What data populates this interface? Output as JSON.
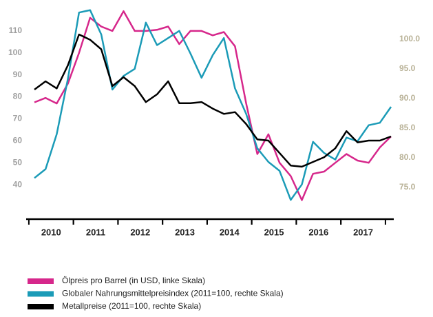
{
  "chart_data": {
    "type": "line",
    "categories": [
      null,
      null,
      "2010",
      null,
      null,
      null,
      "2011",
      null,
      null,
      null,
      "2012",
      null,
      null,
      null,
      "2013",
      null,
      null,
      null,
      "2014",
      null,
      null,
      null,
      "2015",
      null,
      null,
      null,
      "2016",
      null,
      null,
      null,
      "2017",
      null,
      null
    ],
    "series": [
      {
        "name": "Ölpreis pro Barrel (in USD, linke Skala)",
        "color": "#d6278b",
        "axis": "y",
        "values": [
          77.5,
          79.5,
          77,
          86,
          100,
          116,
          112,
          110,
          119,
          110,
          110,
          110.5,
          112,
          104,
          110,
          110,
          108,
          109.5,
          103,
          77,
          54,
          63,
          50,
          44,
          33,
          45,
          46,
          50,
          54,
          51,
          50,
          57,
          62
        ]
      },
      {
        "name": "Globaler Nahrungsmittelpreisindex (2011=100, rechte Skala)",
        "color": "#1b9bb7",
        "axis": "y2",
        "values": [
          76.6,
          78.1,
          84,
          93.3,
          104.5,
          104.9,
          100.8,
          91.5,
          93.8,
          95,
          102.8,
          99,
          100.2,
          101.4,
          97.6,
          93.5,
          97.3,
          100.2,
          91.7,
          87.4,
          81.6,
          79.3,
          77.8,
          72.9,
          75.5,
          82.7,
          80.8,
          79.7,
          83.4,
          82.8,
          85.5,
          85.9,
          88.6
        ]
      },
      {
        "name": "Metallpreise (2011=100, rechte Skala)",
        "color": "#000000",
        "axis": "y2",
        "values": [
          91.5,
          92.9,
          91.7,
          95.6,
          100.8,
          99.9,
          98.3,
          92.1,
          93.6,
          92.1,
          89.4,
          90.7,
          92.9,
          89.2,
          89.2,
          89.4,
          88.3,
          87.4,
          87.7,
          85.7,
          83.1,
          82.9,
          80.8,
          78.7,
          78.5,
          79.3,
          80.1,
          81.6,
          84.5,
          82.6,
          82.9,
          82.9,
          83.6
        ]
      }
    ],
    "ylim": [
      30,
      120
    ],
    "yticks": [
      40,
      50,
      60,
      70,
      80,
      90,
      100,
      110
    ],
    "y2lim": [
      71.75,
      105.1
    ],
    "y2ticks": [
      {
        "value": 75,
        "label": "75.0"
      },
      {
        "value": 80,
        "label": "80.0"
      },
      {
        "value": 85,
        "label": "85.0"
      },
      {
        "value": 90,
        "label": "90.0"
      },
      {
        "value": 95,
        "label": "95.0"
      },
      {
        "value": 100,
        "label": "100.0"
      }
    ]
  }
}
